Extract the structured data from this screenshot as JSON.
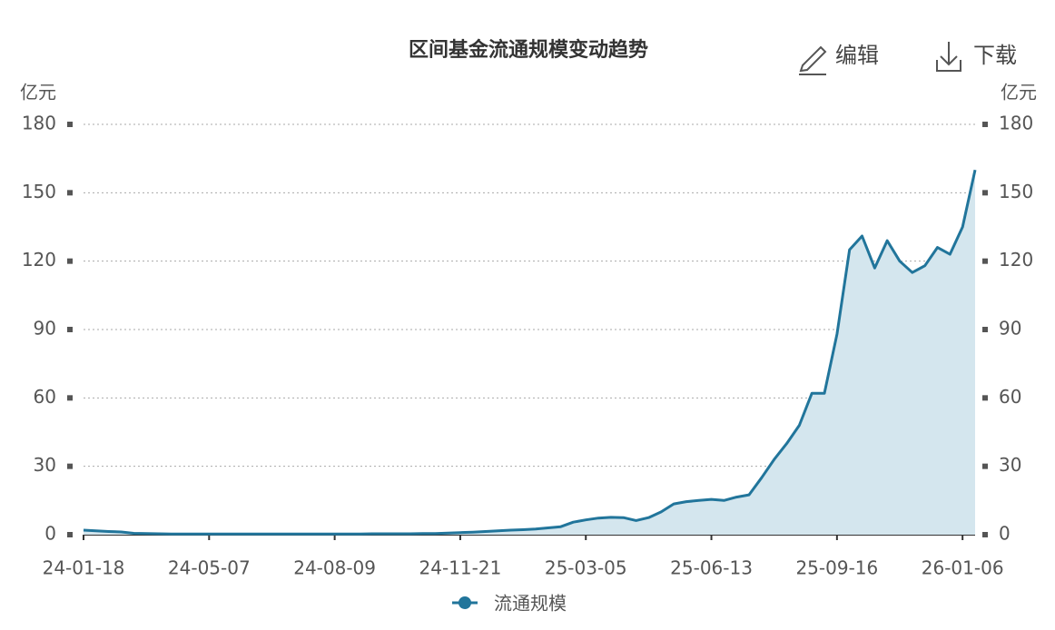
{
  "chart_data": {
    "type": "line",
    "title": "区间基金流通规模变动趋势",
    "buttons": [
      "编辑",
      "下载"
    ],
    "y_label": "亿元",
    "y2_label": "亿元",
    "categories": [
      "24-01-18",
      null,
      null,
      null,
      null,
      null,
      null,
      null,
      null,
      null,
      "24-05-07",
      null,
      null,
      null,
      null,
      null,
      null,
      null,
      null,
      null,
      "24-08-09",
      null,
      null,
      null,
      null,
      null,
      null,
      null,
      null,
      null,
      "24-11-21",
      null,
      null,
      null,
      null,
      null,
      null,
      null,
      null,
      null,
      "25-03-05",
      null,
      null,
      null,
      null,
      null,
      null,
      null,
      null,
      null,
      "25-06-13",
      null,
      null,
      null,
      null,
      null,
      null,
      null,
      null,
      null,
      "25-09-16",
      null,
      null,
      null,
      null,
      null,
      null,
      null,
      null,
      null,
      "26-01-06",
      null
    ],
    "series": [
      {
        "name": "流通规模",
        "color": "#21759b",
        "fill": "#d4e6ee",
        "values": [
          2,
          1.7,
          1.4,
          1.2,
          0.6,
          0.5,
          0.4,
          0.3,
          0.3,
          0.3,
          0.3,
          0.3,
          0.3,
          0.3,
          0.3,
          0.3,
          0.3,
          0.3,
          0.3,
          0.3,
          0.3,
          0.3,
          0.3,
          0.4,
          0.4,
          0.4,
          0.4,
          0.5,
          0.5,
          0.7,
          0.9,
          1.1,
          1.4,
          1.7,
          2,
          2.2,
          2.5,
          3,
          3.5,
          5.5,
          6.5,
          7.3,
          7.6,
          7.5,
          6.2,
          7.5,
          10,
          13.5,
          14.5,
          15,
          15.5,
          15,
          16.5,
          17.5,
          25,
          33,
          40,
          48,
          62,
          62,
          88,
          125,
          131,
          117,
          129,
          120,
          115,
          118,
          126,
          123,
          135,
          160
        ]
      }
    ],
    "ylim": [
      0,
      180
    ],
    "yticks": [
      0,
      30,
      60,
      90,
      120,
      150,
      180
    ],
    "y2lim": [
      0,
      180
    ],
    "y2ticks": [
      0,
      30,
      60,
      90,
      120,
      150,
      180
    ],
    "grid": true
  }
}
